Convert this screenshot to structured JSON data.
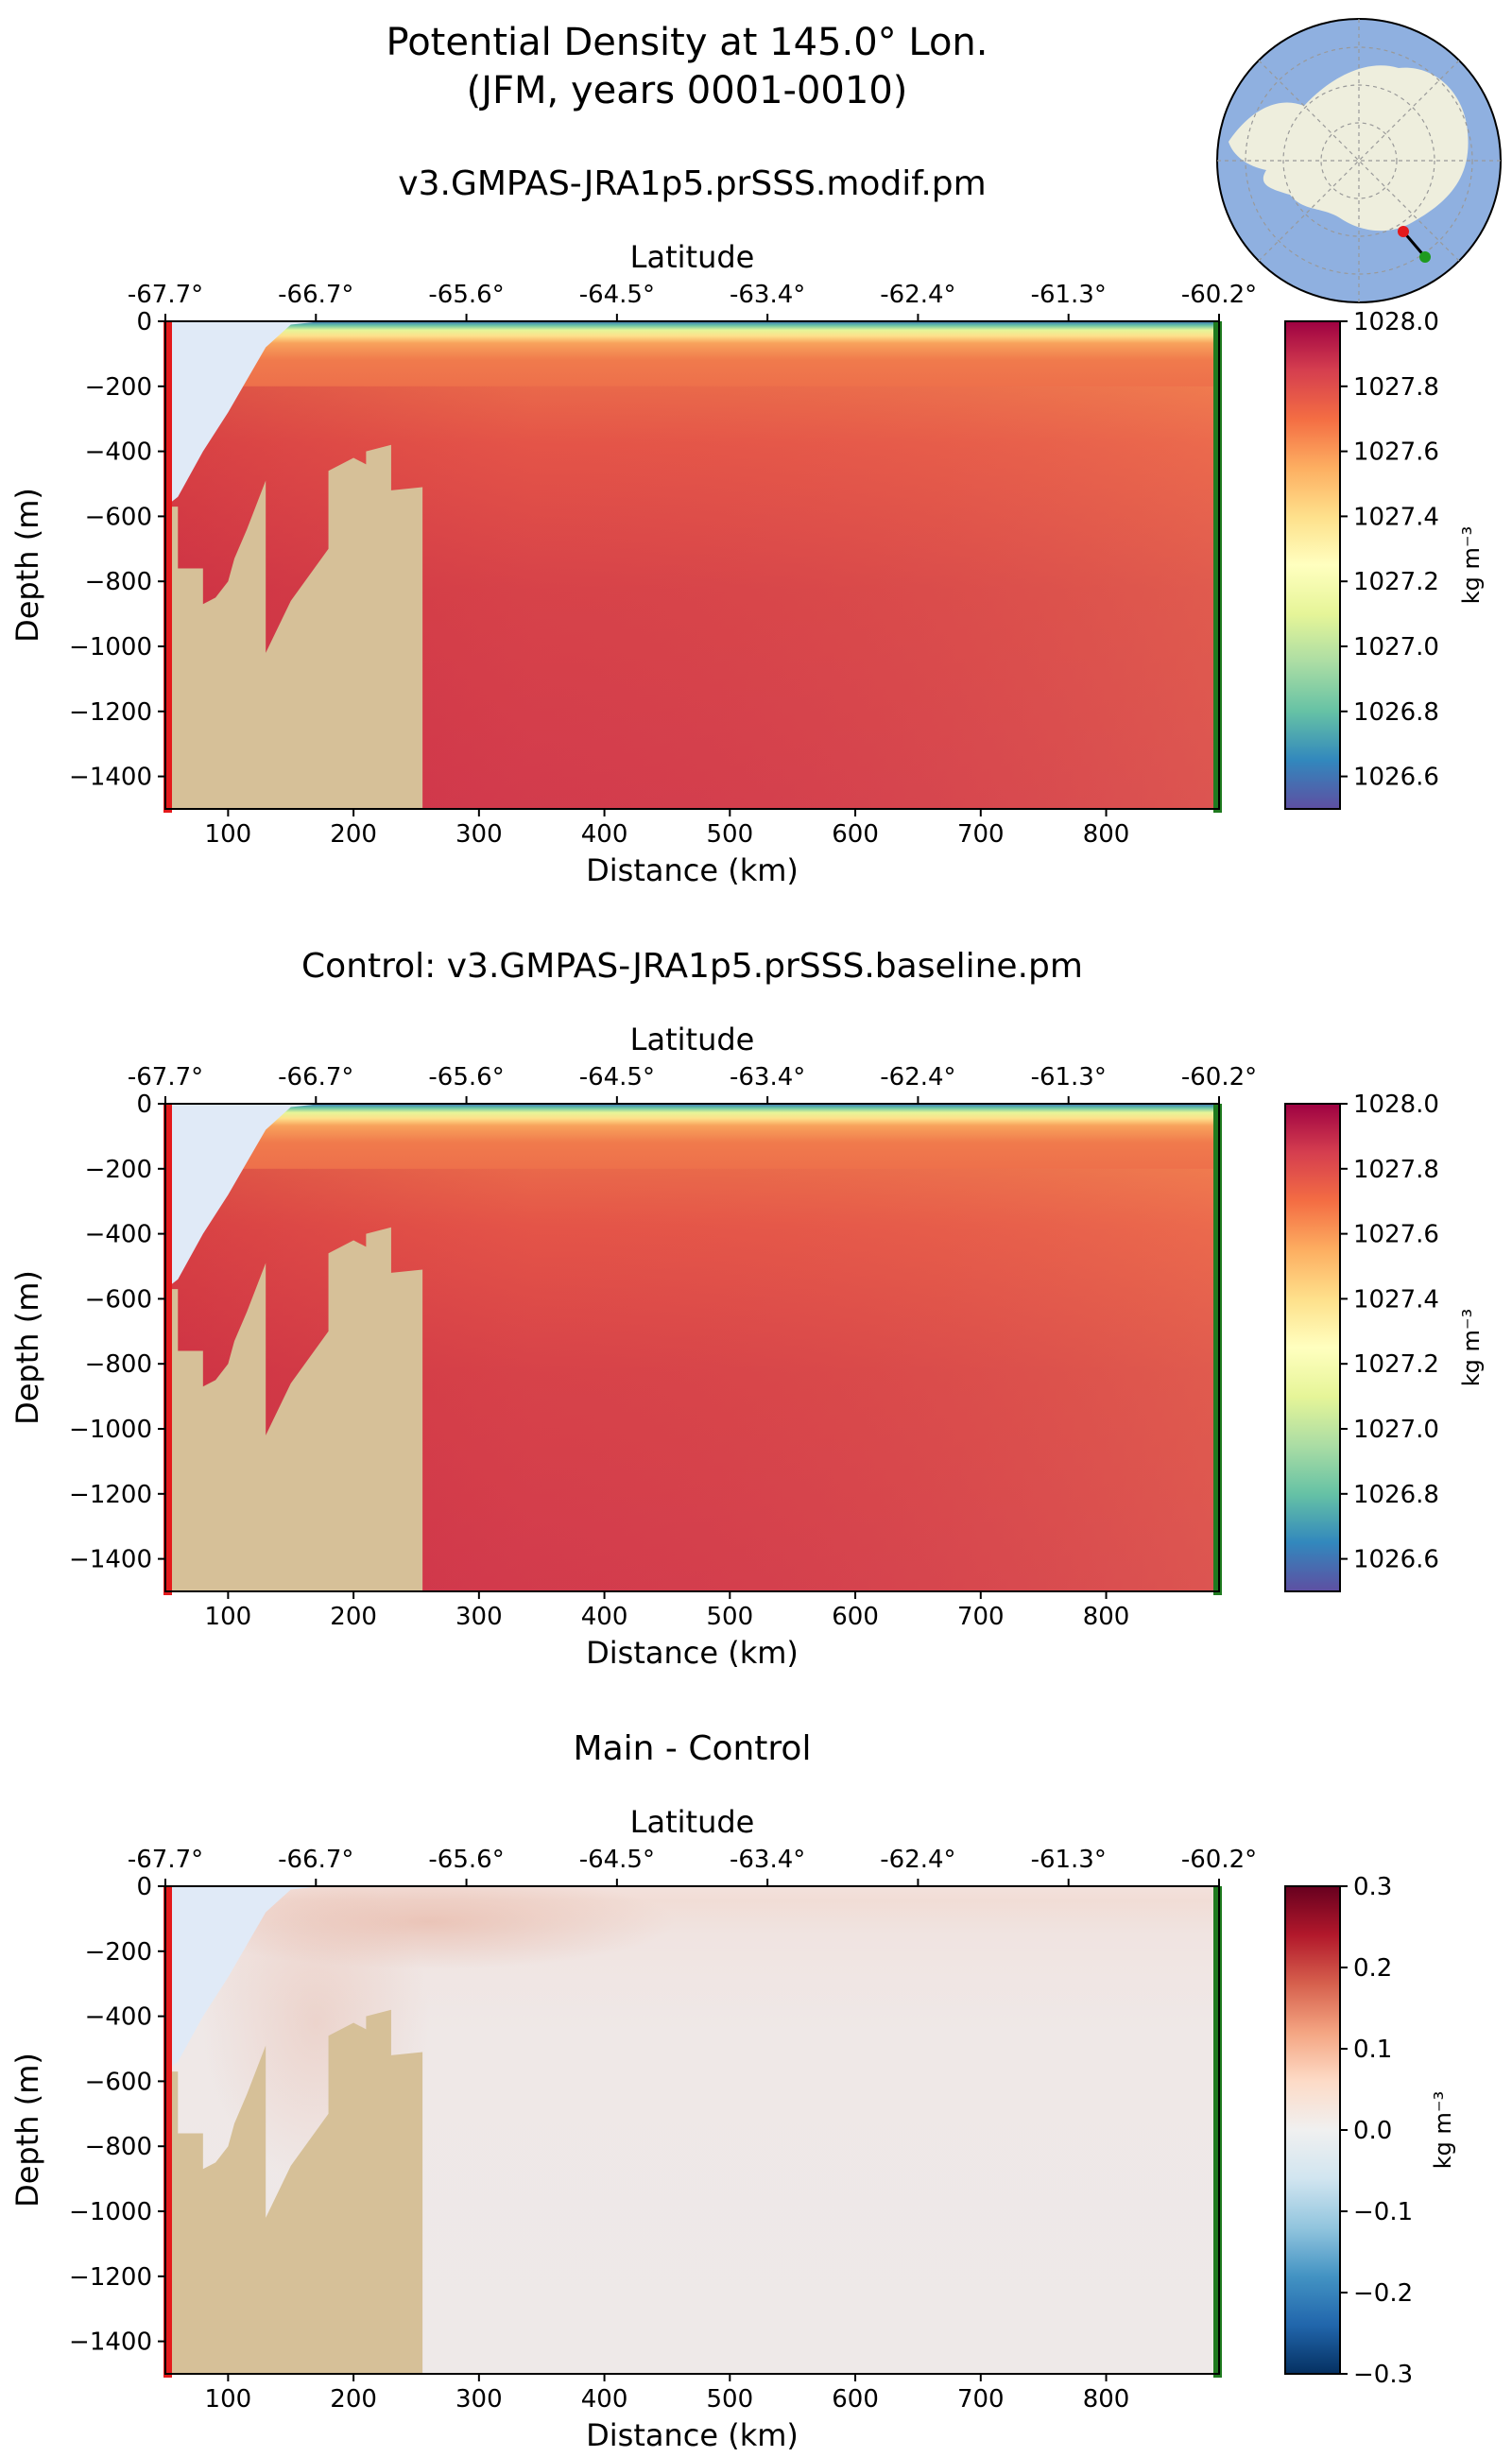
{
  "figure": {
    "title_line1": "Potential Density at 145.0° Lon.",
    "title_line2": "(JFM, years 0001-0010)"
  },
  "colors": {
    "land": "#d6c098",
    "ice_shelf": "#e0eaf7",
    "start_marker": "#e41a1c",
    "end_marker": "#1f7a1f",
    "inset_ocean": "#8fb0e0",
    "inset_land": "#eeeedd"
  },
  "chart_data": [
    {
      "type": "heatmap",
      "id": "main",
      "title": "v3.GMPAS-JRA1p5.prSSS.modif.pm",
      "xlabel": "Distance (km)",
      "ylabel": "Depth (m)",
      "top_xlabel": "Latitude",
      "xlim": [
        50,
        890
      ],
      "ylim": [
        -1500,
        0
      ],
      "xticks": [
        100,
        200,
        300,
        400,
        500,
        600,
        700,
        800
      ],
      "yticks": [
        0,
        -200,
        -400,
        -600,
        -800,
        -1000,
        -1200,
        -1400
      ],
      "top_ticks": [
        {
          "distance": 50,
          "label": "-67.7°"
        },
        {
          "distance": 170,
          "label": "-66.7°"
        },
        {
          "distance": 290,
          "label": "-65.6°"
        },
        {
          "distance": 410,
          "label": "-64.5°"
        },
        {
          "distance": 530,
          "label": "-63.4°"
        },
        {
          "distance": 650,
          "label": "-62.4°"
        },
        {
          "distance": 770,
          "label": "-61.3°"
        },
        {
          "distance": 890,
          "label": "-60.2°"
        }
      ],
      "colorbar": {
        "label": "kg m⁻³",
        "vmin": 1026.5,
        "vmax": 1028.0,
        "ticks": [
          1028.0,
          1027.8,
          1027.6,
          1027.4,
          1027.2,
          1027.0,
          1026.8,
          1026.6
        ],
        "colormap": "Spectral_r"
      },
      "field_values": {
        "surface": 1026.6,
        "deep_south": 1027.85,
        "deep_north": 1027.75,
        "near_shelf": 1027.88
      }
    },
    {
      "type": "heatmap",
      "id": "control",
      "title": "Control: v3.GMPAS-JRA1p5.prSSS.baseline.pm",
      "xlabel": "Distance (km)",
      "ylabel": "Depth (m)",
      "top_xlabel": "Latitude",
      "xlim": [
        50,
        890
      ],
      "ylim": [
        -1500,
        0
      ],
      "xticks": [
        100,
        200,
        300,
        400,
        500,
        600,
        700,
        800
      ],
      "yticks": [
        0,
        -200,
        -400,
        -600,
        -800,
        -1000,
        -1200,
        -1400
      ],
      "top_ticks": [
        {
          "distance": 50,
          "label": "-67.7°"
        },
        {
          "distance": 170,
          "label": "-66.7°"
        },
        {
          "distance": 290,
          "label": "-65.6°"
        },
        {
          "distance": 410,
          "label": "-64.5°"
        },
        {
          "distance": 530,
          "label": "-63.4°"
        },
        {
          "distance": 650,
          "label": "-62.4°"
        },
        {
          "distance": 770,
          "label": "-61.3°"
        },
        {
          "distance": 890,
          "label": "-60.2°"
        }
      ],
      "colorbar": {
        "label": "kg m⁻³",
        "vmin": 1026.5,
        "vmax": 1028.0,
        "ticks": [
          1028.0,
          1027.8,
          1027.6,
          1027.4,
          1027.2,
          1027.0,
          1026.8,
          1026.6
        ],
        "colormap": "Spectral_r"
      },
      "field_values": {
        "surface": 1026.6,
        "deep_south": 1027.85,
        "deep_north": 1027.75,
        "near_shelf": 1027.88
      }
    },
    {
      "type": "heatmap",
      "id": "diff",
      "title": "Main - Control",
      "xlabel": "Distance (km)",
      "ylabel": "Depth (m)",
      "top_xlabel": "Latitude",
      "xlim": [
        50,
        890
      ],
      "ylim": [
        -1500,
        0
      ],
      "xticks": [
        100,
        200,
        300,
        400,
        500,
        600,
        700,
        800
      ],
      "yticks": [
        0,
        -200,
        -400,
        -600,
        -800,
        -1000,
        -1200,
        -1400
      ],
      "top_ticks": [
        {
          "distance": 50,
          "label": "-67.7°"
        },
        {
          "distance": 170,
          "label": "-66.7°"
        },
        {
          "distance": 290,
          "label": "-65.6°"
        },
        {
          "distance": 410,
          "label": "-64.5°"
        },
        {
          "distance": 530,
          "label": "-63.4°"
        },
        {
          "distance": 650,
          "label": "-62.4°"
        },
        {
          "distance": 770,
          "label": "-61.3°"
        },
        {
          "distance": 890,
          "label": "-60.2°"
        }
      ],
      "colorbar": {
        "label": "kg m⁻³",
        "vmin": -0.3,
        "vmax": 0.3,
        "ticks": [
          0.3,
          0.2,
          0.1,
          0.0,
          -0.1,
          -0.2,
          -0.3
        ],
        "colormap": "RdBu_r"
      },
      "field_values": {
        "shelf_anomaly": 0.04,
        "background": 0.01
      }
    }
  ],
  "section": {
    "bathymetry_km_m": [
      [
        50,
        -570
      ],
      [
        60,
        -570
      ],
      [
        60,
        -760
      ],
      [
        80,
        -760
      ],
      [
        80,
        -870
      ],
      [
        90,
        -850
      ],
      [
        100,
        -800
      ],
      [
        105,
        -730
      ],
      [
        115,
        -640
      ],
      [
        130,
        -490
      ],
      [
        130,
        -1020
      ],
      [
        150,
        -860
      ],
      [
        180,
        -700
      ],
      [
        180,
        -460
      ],
      [
        200,
        -420
      ],
      [
        210,
        -440
      ],
      [
        210,
        -400
      ],
      [
        230,
        -380
      ],
      [
        230,
        -520
      ],
      [
        255,
        -510
      ],
      [
        255,
        -1500
      ],
      [
        50,
        -1500
      ]
    ],
    "ice_shelf_km_m": [
      [
        50,
        0
      ],
      [
        175,
        0
      ],
      [
        150,
        -10
      ],
      [
        130,
        -80
      ],
      [
        115,
        -180
      ],
      [
        100,
        -280
      ],
      [
        80,
        -400
      ],
      [
        60,
        -540
      ],
      [
        50,
        -570
      ]
    ]
  }
}
